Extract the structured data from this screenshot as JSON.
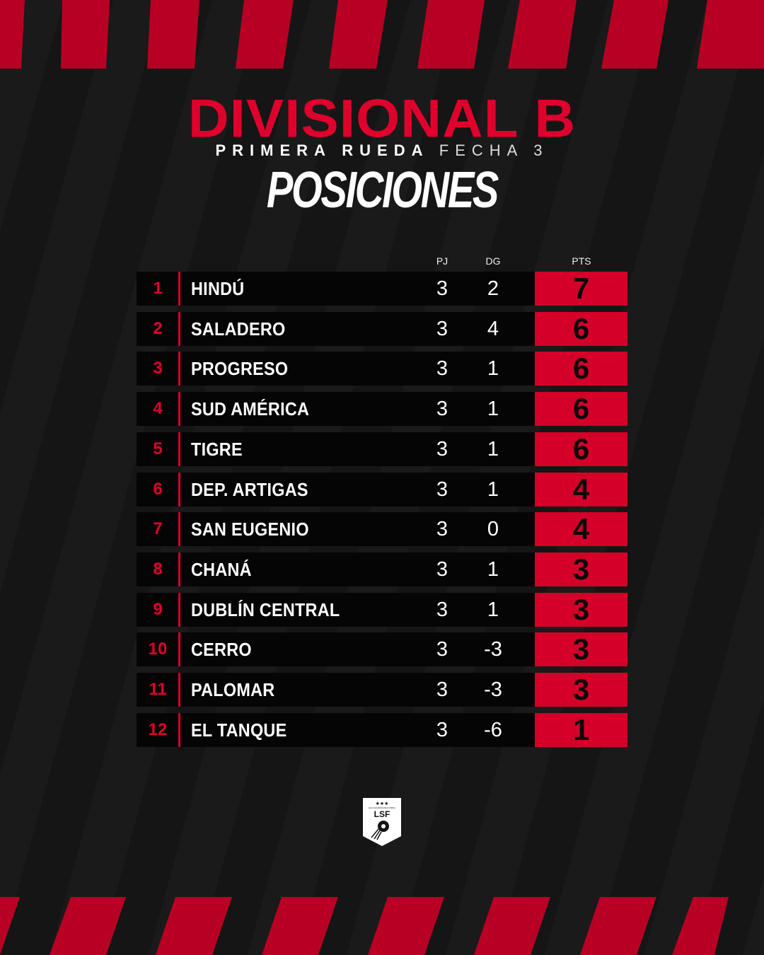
{
  "title": "DIVISIONAL B",
  "subtitle": {
    "bold": "PRIMERA RUEDA",
    "light": "FECHA 3"
  },
  "heading": "POSICIONES",
  "columns": {
    "pj": "PJ",
    "dg": "DG",
    "pts": "PTS"
  },
  "colors": {
    "accent": "#d4002a",
    "stripe": "#b80024",
    "background": "#151515"
  },
  "rows": [
    {
      "rank": "1",
      "team": "HINDÚ",
      "pj": "3",
      "dg": "2",
      "pts": "7"
    },
    {
      "rank": "2",
      "team": "SALADERO",
      "pj": "3",
      "dg": "4",
      "pts": "6"
    },
    {
      "rank": "3",
      "team": "PROGRESO",
      "pj": "3",
      "dg": "1",
      "pts": "6"
    },
    {
      "rank": "4",
      "team": "SUD AMÉRICA",
      "pj": "3",
      "dg": "1",
      "pts": "6"
    },
    {
      "rank": "5",
      "team": "TIGRE",
      "pj": "3",
      "dg": "1",
      "pts": "6"
    },
    {
      "rank": "6",
      "team": "DEP. ARTIGAS",
      "pj": "3",
      "dg": "1",
      "pts": "4"
    },
    {
      "rank": "7",
      "team": "SAN EUGENIO",
      "pj": "3",
      "dg": "0",
      "pts": "4"
    },
    {
      "rank": "8",
      "team": "CHANÁ",
      "pj": "3",
      "dg": "1",
      "pts": "3"
    },
    {
      "rank": "9",
      "team": "DUBLÍN CENTRAL",
      "pj": "3",
      "dg": "1",
      "pts": "3"
    },
    {
      "rank": "10",
      "team": "CERRO",
      "pj": "3",
      "dg": "-3",
      "pts": "3"
    },
    {
      "rank": "11",
      "team": "PALOMAR",
      "pj": "3",
      "dg": "-3",
      "pts": "3"
    },
    {
      "rank": "12",
      "team": "EL TANQUE",
      "pj": "3",
      "dg": "-6",
      "pts": "1"
    }
  ],
  "logo": {
    "text": "LSF",
    "caption": "LIGA SALTEÑA DE FÚTBOL",
    "icon": "lsf-shield-logo"
  }
}
